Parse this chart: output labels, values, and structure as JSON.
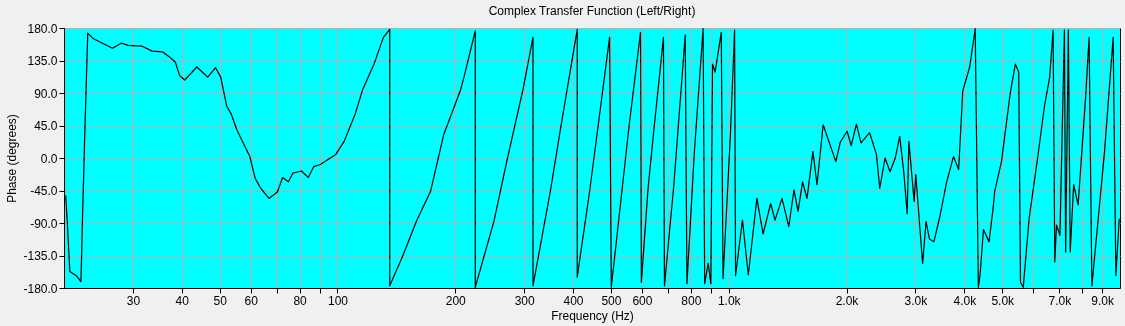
{
  "chart_data": {
    "type": "line",
    "title": "Complex Transfer Function (Left/Right)",
    "xlabel": "Frequency (Hz)",
    "ylabel": "Phase (degrees)",
    "log": "x",
    "grid": true,
    "line_style": "solid",
    "marker": "none",
    "xlim": [
      20,
      10000
    ],
    "ylim": [
      -180,
      180
    ],
    "xticks": [
      30,
      40,
      50,
      60,
      {
        "value": 70,
        "label": null
      },
      80,
      {
        "value": 90,
        "label": null
      },
      100,
      200,
      300,
      400,
      500,
      600,
      {
        "value": 700,
        "label": null
      },
      800,
      {
        "value": 900,
        "label": null
      },
      {
        "value": 1000,
        "label": "1.0k"
      },
      {
        "value": 2000,
        "label": "2.0k"
      },
      {
        "value": 3000,
        "label": "3.0k"
      },
      {
        "value": 4000,
        "label": "4.0k"
      },
      {
        "value": 5000,
        "label": "5.0k"
      },
      {
        "value": 6000,
        "label": null
      },
      {
        "value": 7000,
        "label": "7.0k"
      },
      {
        "value": 8000,
        "label": null
      },
      {
        "value": 9000,
        "label": "9.0k"
      }
    ],
    "yticks": [
      {
        "value": 180,
        "label": "180.0"
      },
      {
        "value": 135,
        "label": "135.0"
      },
      {
        "value": 90,
        "label": "90.0"
      },
      {
        "value": 45,
        "label": "45.0"
      },
      {
        "value": 0,
        "label": "0.0"
      },
      {
        "value": -45,
        "label": "-45.0"
      },
      {
        "value": -90,
        "label": "-90.0"
      },
      {
        "value": -135,
        "label": "-135.0"
      },
      {
        "value": -180,
        "label": "-180.0"
      }
    ],
    "series": [
      {
        "color": "#000000",
        "x": [
          20.2,
          20.4,
          20.7,
          21.5,
          22.1,
          22.3,
          22.6,
          23.0,
          23.8,
          26.6,
          28.0,
          29.2,
          31.6,
          33.6,
          35.7,
          37.2,
          38.5,
          39.5,
          40.7,
          43.7,
          46.6,
          48.8,
          50.3,
          52.1,
          53.5,
          55.4,
          59.7,
          61.6,
          63.5,
          66.8,
          70.2,
          72.4,
          74.9,
          76.9,
          80.9,
          84.2,
          86.9,
          90.4,
          99,
          104,
          111,
          116,
          124,
          131,
          136,
          136,
          147,
          159,
          173,
          187,
          206,
          211,
          225,
          225,
          251,
          272,
          298,
          316,
          316,
          350,
          372,
          410,
          410,
          441,
          496,
          501,
          557,
          595,
          598,
          622,
          642,
          681,
          685,
          724,
          774,
          782,
          817,
          860,
          868,
          886,
          900,
          909,
          923,
          957,
          967,
          1010,
          1035,
          1041,
          1084,
          1122,
          1180,
          1224,
          1280,
          1313,
          1368,
          1424,
          1468,
          1504,
          1544,
          1585,
          1641,
          1681,
          1743,
          1878,
          1928,
          2007,
          2056,
          2120,
          2178,
          2291,
          2385,
          2432,
          2509,
          2584,
          2664,
          2735,
          2801,
          2858,
          2887,
          2977,
          3006,
          3130,
          3194,
          3258,
          3345,
          3464,
          3606,
          3754,
          3869,
          3964,
          4129,
          4265,
          4345,
          4387,
          4478,
          4627,
          4738,
          4785,
          4978,
          5236,
          5401,
          5510,
          5567,
          5659,
          5857,
          6158,
          6412,
          6611,
          6745,
          6813,
          6881,
          7023,
          7210,
          7262,
          7380,
          7460,
          7613,
          7816,
          8172,
          8337,
          8474,
          8650,
          9131,
          9605,
          9760,
          9955
        ],
        "values": [
          -52,
          -91,
          -157,
          -163,
          -171,
          -84,
          33,
          173,
          165,
          152,
          159,
          156,
          155,
          148,
          147,
          140,
          133,
          114,
          108,
          126,
          112,
          125,
          112,
          72,
          61,
          38,
          2,
          -28,
          -41,
          -56,
          -47,
          -27,
          -33,
          -21,
          -18,
          -27,
          -12,
          -9,
          5,
          23,
          61,
          95,
          130,
          167,
          178,
          -177,
          -135,
          -88,
          -46,
          33,
          93,
          114,
          176,
          -179,
          -88,
          0,
          95,
          167,
          -177,
          -46,
          42,
          178,
          -165,
          -46,
          167,
          -179,
          47,
          174,
          -172,
          -42,
          33,
          167,
          -177,
          -37,
          170,
          -174,
          9,
          179,
          -174,
          -146,
          -174,
          130,
          119,
          174,
          -167,
          33,
          177,
          -163,
          -86,
          -162,
          -56,
          -105,
          -63,
          -86,
          -56,
          -95,
          -44,
          -74,
          -33,
          -56,
          9,
          -37,
          46,
          -5,
          22,
          37,
          17,
          47,
          21,
          35,
          5,
          -42,
          0,
          -19,
          0,
          30,
          -19,
          -77,
          23,
          -60,
          -23,
          -146,
          -88,
          -112,
          -116,
          -81,
          -33,
          2,
          -16,
          93,
          126,
          179,
          -179,
          -163,
          -99,
          -116,
          -70,
          -46,
          -5,
          88,
          130,
          119,
          -172,
          -179,
          -84,
          0,
          72,
          112,
          177,
          -144,
          -93,
          -107,
          177,
          -130,
          177,
          -130,
          -37,
          -65,
          86,
          167,
          -177,
          -126,
          9,
          167,
          -163,
          -84
        ]
      }
    ]
  }
}
